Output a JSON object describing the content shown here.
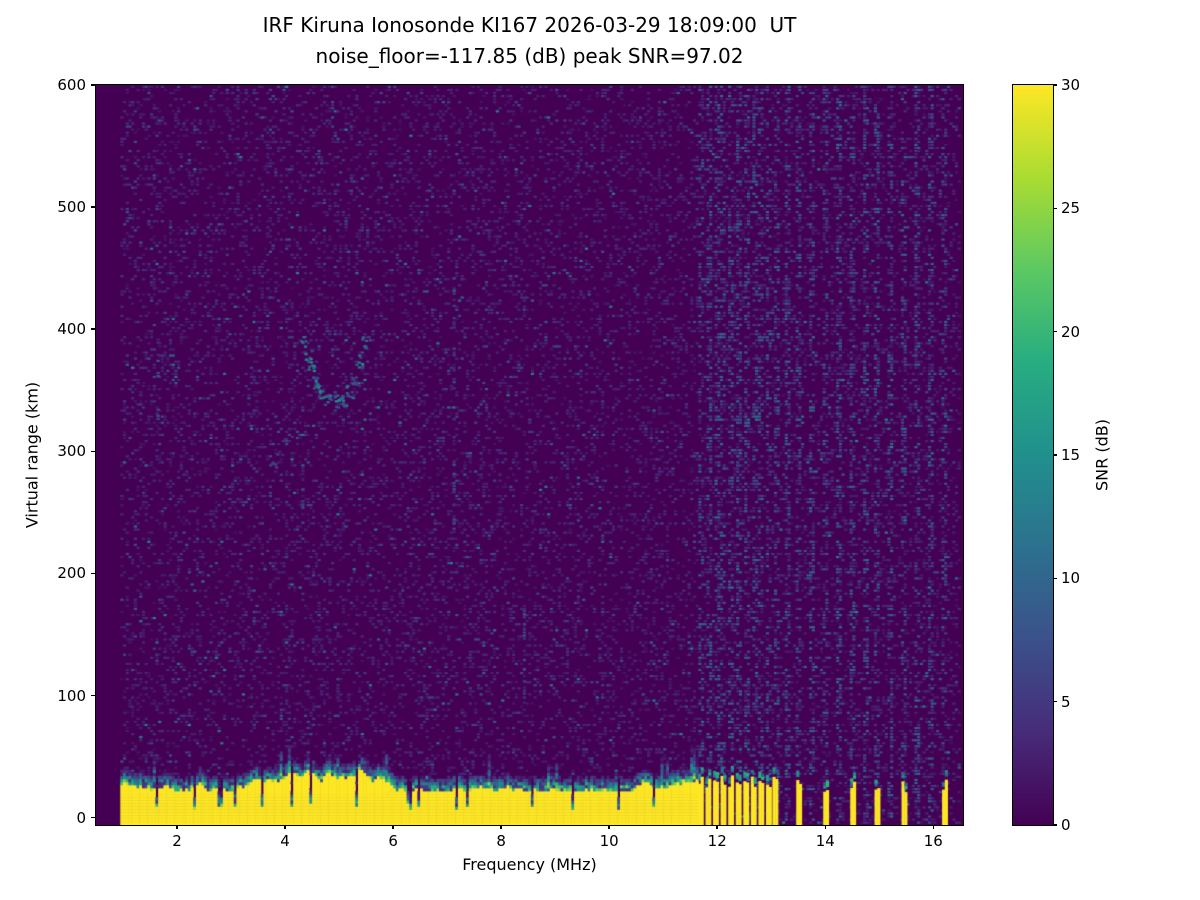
{
  "chart_data": {
    "type": "heatmap",
    "title": "IRF Kiruna Ionosonde KI167 2026-03-29 18:09:00  UT",
    "subtitle": "noise_floor=-117.85 (dB) peak SNR=97.02",
    "xlabel": "Frequency (MHz)",
    "ylabel": "Virtual range (km)",
    "xlim": [
      0.5,
      16.55
    ],
    "ylim": [
      -6,
      600
    ],
    "xticks": [
      2,
      4,
      6,
      8,
      10,
      12,
      14,
      16
    ],
    "yticks": [
      0,
      100,
      200,
      300,
      400,
      500,
      600
    ],
    "grid": false,
    "legend": "none",
    "colorbar": {
      "label": "SNR (dB)",
      "min": 0,
      "max": 30,
      "ticks": [
        0,
        5,
        10,
        15,
        20,
        25,
        30
      ],
      "colormap": "viridis"
    },
    "noise_floor_db": -117.85,
    "peak_snr_db": 97.02,
    "freq_range_mhz": [
      0.95,
      16.5
    ],
    "freq_step_mhz": 0.05,
    "range_step_km": 2.5,
    "background_snr_db": 0,
    "ground_clutter": {
      "freq_start": 0.95,
      "freq_end": 11.62,
      "top_km_min": 20,
      "top_km_max": 38,
      "notch_freqs": [
        1.6,
        2.3,
        2.78,
        3.05,
        3.55,
        4.1,
        4.45,
        5.3,
        6.28,
        6.45,
        7.15,
        7.35,
        8.55,
        9.3,
        10.15,
        10.8
      ]
    },
    "broadcast_bars": {
      "freqs": [
        11.68,
        11.82,
        11.96,
        12.1,
        12.24,
        12.38,
        12.52,
        12.66,
        12.8,
        12.94,
        13.06
      ],
      "width_mhz": 0.075,
      "top_km": 30
    },
    "isolated_bars": {
      "freqs": [
        13.5,
        14.0,
        14.5,
        14.95,
        15.45,
        16.2
      ],
      "width_mhz": 0.075,
      "top_km": 27
    },
    "rfi_speckle_columns": [
      11.68,
      11.82,
      11.96,
      12.1,
      12.24,
      12.38,
      12.52,
      12.66,
      12.8,
      12.94,
      13.06,
      13.3,
      13.5,
      13.75,
      14.0,
      14.25,
      14.5,
      14.75,
      14.95,
      15.2,
      15.45,
      15.7,
      15.95,
      16.2
    ],
    "echo_trace": {
      "points_mhz_km": [
        [
          4.35,
          392
        ],
        [
          4.42,
          378
        ],
        [
          4.48,
          366
        ],
        [
          4.55,
          357
        ],
        [
          4.65,
          349
        ],
        [
          4.78,
          344
        ],
        [
          4.92,
          341
        ],
        [
          5.05,
          342
        ],
        [
          5.17,
          349
        ],
        [
          5.28,
          360
        ],
        [
          5.38,
          374
        ],
        [
          5.47,
          390
        ]
      ],
      "faint_points": [
        [
          3.78,
          291
        ],
        [
          3.88,
          299
        ],
        [
          3.98,
          308
        ],
        [
          4.08,
          316
        ]
      ]
    },
    "noise_streaks": [
      {
        "freq": 1.62,
        "km_range": [
          315,
          395
        ]
      },
      {
        "freq": 7.1,
        "km_range": [
          230,
          455
        ]
      },
      {
        "freq": 8.4,
        "km_range": [
          95,
          175
        ]
      },
      {
        "freq": 4.3,
        "km_range": [
          240,
          300
        ]
      }
    ]
  }
}
